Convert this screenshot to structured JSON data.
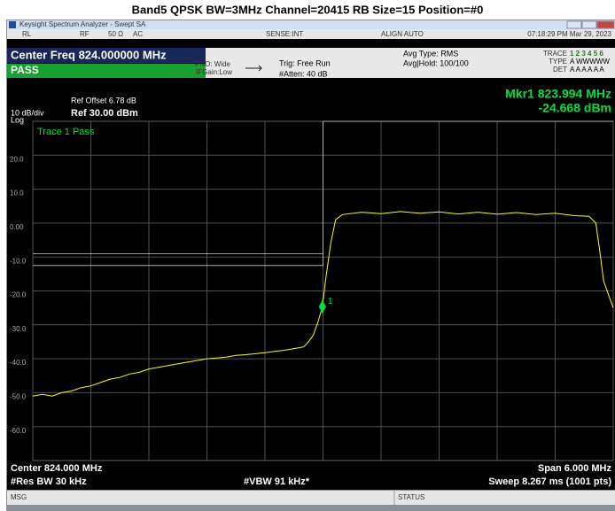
{
  "title": "Band5 QPSK BW=3MHz Channel=20415 RB Size=15 Position=#0",
  "window": {
    "title": "Keysight Spectrum Analyzer - Swept SA",
    "status_row": [
      "RL",
      "RF",
      "50 Ω",
      "AC",
      "SENSE:INT",
      "ALIGN AUTO"
    ],
    "timestamp": "07:18:29 PM Mar 29, 2023"
  },
  "header": {
    "center_freq": "Center Freq 824.000000 MHz",
    "pass": "PASS",
    "pno": "PNO: Wide",
    "ifgain": "IFGain:Low",
    "trig": "Trig: Free Run",
    "atten": "#Atten: 40 dB",
    "avg_type": "Avg Type: RMS",
    "avg_hold": "Avg|Hold: 100/100",
    "trace": "TRACE",
    "trace_nums": "1 2 3 4 5 6",
    "type": "TYPE",
    "type_vals": "A WWWWW",
    "det": "DET",
    "det_vals": "A A A A A A",
    "ref_offset": "Ref Offset 6.78 dB",
    "scale": "10 dB/div",
    "ref_level": "Ref 30.00 dBm",
    "log": "Log",
    "marker_freq": "Mkr1 823.994 MHz",
    "marker_level": "-24.668 dBm",
    "trace_pass": "Trace 1 Pass"
  },
  "chart_data": {
    "type": "line",
    "xlim": [
      821,
      827
    ],
    "xticks": [
      821,
      821.6,
      822.2,
      822.8,
      823.4,
      824,
      824.6,
      825.2,
      825.8,
      826.4,
      827
    ],
    "ylim": [
      -70,
      30
    ],
    "yticks": [
      {
        "value": 20,
        "label": "20.0"
      },
      {
        "value": 10,
        "label": "10.0"
      },
      {
        "value": 0,
        "label": "0.00"
      },
      {
        "value": -10,
        "label": "-10.0"
      },
      {
        "value": -20,
        "label": "-20.0"
      },
      {
        "value": -30,
        "label": "-30.0"
      },
      {
        "value": -40,
        "label": "-40.0"
      },
      {
        "value": -50,
        "label": "-50.0"
      },
      {
        "value": -60,
        "label": "-60.0"
      }
    ],
    "grid": true,
    "series": [
      {
        "color": "#ffff00",
        "x": [
          821,
          821.1,
          821.2,
          821.3,
          821.4,
          821.5,
          821.6,
          821.7,
          821.8,
          821.9,
          822,
          822.1,
          822.2,
          822.3,
          822.4,
          822.5,
          822.6,
          822.7,
          822.8,
          822.9,
          823,
          823.1,
          823.2,
          823.3,
          823.4,
          823.5,
          823.6,
          823.7,
          823.8,
          823.85,
          823.9,
          823.95,
          823.994,
          824.03,
          824.08,
          824.13,
          824.2,
          824.4,
          824.6,
          824.8,
          825,
          825.2,
          825.4,
          825.6,
          825.8,
          826,
          826.2,
          826.4,
          826.6,
          826.75,
          826.82,
          826.86,
          826.9,
          826.95,
          827
        ],
        "values": [
          -51,
          -50.5,
          -51,
          -50,
          -49.5,
          -48.5,
          -48,
          -47,
          -46,
          -45.5,
          -44.5,
          -44,
          -43,
          -42.5,
          -42,
          -41.5,
          -41,
          -40.5,
          -40,
          -39.8,
          -39.5,
          -39,
          -38.8,
          -38.5,
          -38.2,
          -37.8,
          -37.5,
          -37,
          -36.5,
          -35,
          -33,
          -29,
          -24.668,
          -16,
          -6,
          1,
          2.5,
          3.2,
          2.8,
          3.4,
          2.9,
          3.3,
          2.7,
          3.2,
          2.6,
          3.1,
          2.5,
          2.9,
          2.2,
          2,
          0,
          -8,
          -17,
          -21,
          -25
        ]
      },
      {
        "color": "#c8c8c8",
        "x": [
          821,
          824
        ],
        "values": [
          -9,
          -9
        ]
      },
      {
        "color": "#c8c8c8",
        "x": [
          821,
          824,
          824,
          827
        ],
        "values": [
          -12.5,
          -12.5,
          30,
          30
        ]
      }
    ],
    "marker": {
      "x": 823.994,
      "value": -24.668,
      "label": "1",
      "color": "#00e040"
    }
  },
  "footer": {
    "center": "Center 824.000 MHz",
    "rbw": "#Res BW 30 kHz",
    "vbw": "#VBW 91 kHz*",
    "span": "Span 6.000 MHz",
    "sweep": "Sweep  8.267 ms (1001 pts)",
    "msg": "MSG",
    "status": "STATUS"
  }
}
